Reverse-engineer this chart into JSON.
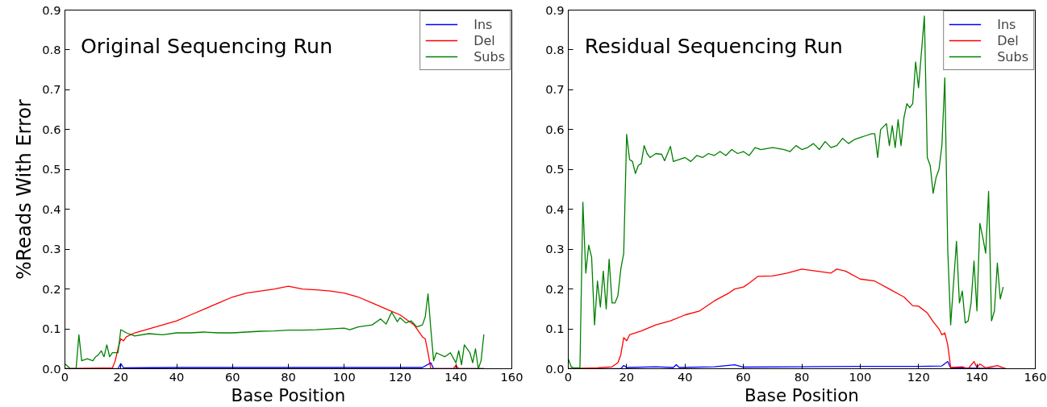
{
  "chart_data": [
    {
      "type": "line",
      "title": "Original Sequencing Run",
      "xlabel": "Base Position",
      "ylabel": "%Reads With Error",
      "xlim": [
        0,
        160
      ],
      "ylim": [
        0,
        0.9
      ],
      "xticks": [
        0,
        20,
        40,
        60,
        80,
        100,
        120,
        140,
        160
      ],
      "yticks": [
        {
          "value": 0,
          "label": "0.0"
        },
        0.1,
        0.2,
        0.3,
        0.4,
        0.5,
        0.6,
        0.7,
        0.8,
        0.9
      ],
      "grid": false,
      "legend": "top right",
      "marker": "none",
      "line_style": "solid",
      "series": [
        {
          "name": "Ins",
          "color": "#0000ff",
          "x": [
            0,
            19,
            20,
            21,
            40,
            80,
            100,
            128,
            131,
            132,
            150
          ],
          "values": [
            0,
            0,
            0.013,
            0.002,
            0.003,
            0.003,
            0.003,
            0.003,
            0.015,
            0,
            0
          ]
        },
        {
          "name": "Del",
          "color": "#ff0000",
          "x": [
            0,
            17,
            18,
            19,
            20,
            21,
            22,
            25,
            30,
            35,
            40,
            45,
            50,
            55,
            60,
            65,
            70,
            75,
            80,
            85,
            90,
            95,
            100,
            105,
            110,
            115,
            120,
            125,
            128,
            129,
            130,
            131,
            139,
            140,
            141,
            150
          ],
          "values": [
            0,
            0.002,
            0.02,
            0.05,
            0.075,
            0.07,
            0.08,
            0.09,
            0.1,
            0.11,
            0.12,
            0.135,
            0.15,
            0.165,
            0.18,
            0.19,
            0.195,
            0.2,
            0.207,
            0.2,
            0.198,
            0.195,
            0.19,
            0.18,
            0.165,
            0.15,
            0.135,
            0.11,
            0.08,
            0.075,
            0.04,
            0,
            0,
            0.008,
            0,
            0
          ]
        },
        {
          "name": "Subs",
          "color": "#008000",
          "x": [
            0,
            2,
            4,
            5,
            6,
            8,
            10,
            11,
            12,
            13,
            14,
            15,
            16,
            17,
            19,
            20,
            22,
            25,
            30,
            35,
            40,
            45,
            50,
            55,
            60,
            65,
            70,
            75,
            80,
            85,
            90,
            95,
            100,
            102,
            105,
            110,
            113,
            115,
            117,
            119,
            120,
            122,
            124,
            126,
            128,
            129,
            130,
            131,
            132,
            133,
            136,
            138,
            140,
            141,
            142,
            143,
            145,
            146,
            147,
            148,
            149,
            150
          ],
          "values": [
            0.012,
            0,
            0,
            0.085,
            0.02,
            0.025,
            0.02,
            0.03,
            0.035,
            0.045,
            0.03,
            0.06,
            0.03,
            0.04,
            0.04,
            0.098,
            0.09,
            0.082,
            0.088,
            0.085,
            0.09,
            0.09,
            0.092,
            0.09,
            0.09,
            0.092,
            0.094,
            0.095,
            0.097,
            0.097,
            0.098,
            0.1,
            0.102,
            0.098,
            0.105,
            0.11,
            0.125,
            0.112,
            0.142,
            0.118,
            0.128,
            0.115,
            0.12,
            0.105,
            0.11,
            0.13,
            0.188,
            0.1,
            0.02,
            0.04,
            0.03,
            0.04,
            0.015,
            0.045,
            0.01,
            0.06,
            0.04,
            0.015,
            0.05,
            0,
            0.02,
            0.086
          ]
        }
      ]
    },
    {
      "type": "line",
      "title": "Residual Sequencing Run",
      "xlabel": "Base Position",
      "xlim": [
        0,
        160
      ],
      "ylim": [
        0,
        0.9
      ],
      "xticks": [
        0,
        20,
        40,
        60,
        80,
        100,
        120,
        140,
        160
      ],
      "yticks": [
        {
          "value": 0,
          "label": "0.0"
        },
        0.1,
        0.2,
        0.3,
        0.4,
        0.5,
        0.6,
        0.7,
        0.8,
        0.9
      ],
      "grid": false,
      "legend": "top right",
      "marker": "none",
      "line_style": "solid",
      "series": [
        {
          "name": "Ins",
          "color": "#0000ff",
          "x": [
            0,
            18,
            19,
            20,
            30,
            36,
            37,
            38,
            50,
            57,
            60,
            80,
            100,
            120,
            128,
            130,
            131,
            150
          ],
          "values": [
            0,
            0,
            0.008,
            0.003,
            0.005,
            0.003,
            0.01,
            0.003,
            0.005,
            0.01,
            0.004,
            0.005,
            0.006,
            0.006,
            0.007,
            0.018,
            0.002,
            0
          ]
        },
        {
          "name": "Del",
          "color": "#ff0000",
          "x": [
            0,
            10,
            15,
            17,
            18,
            19,
            20,
            21,
            25,
            30,
            35,
            40,
            45,
            50,
            55,
            57,
            60,
            62,
            65,
            70,
            75,
            80,
            85,
            90,
            92,
            95,
            100,
            105,
            110,
            115,
            118,
            120,
            123,
            125,
            127,
            128,
            129,
            130,
            131,
            135,
            137,
            139,
            140,
            141,
            143,
            147,
            150
          ],
          "values": [
            0,
            0.002,
            0.005,
            0.015,
            0.035,
            0.078,
            0.07,
            0.085,
            0.095,
            0.11,
            0.12,
            0.135,
            0.145,
            0.17,
            0.19,
            0.2,
            0.205,
            0.215,
            0.232,
            0.233,
            0.24,
            0.25,
            0.245,
            0.24,
            0.25,
            0.245,
            0.225,
            0.22,
            0.2,
            0.18,
            0.158,
            0.157,
            0.14,
            0.118,
            0.1,
            0.085,
            0.09,
            0.06,
            0.003,
            0.005,
            0,
            0.018,
            0.003,
            0.012,
            0.002,
            0.008,
            0
          ]
        },
        {
          "name": "Subs",
          "color": "#008000",
          "x": [
            0,
            1,
            2,
            4,
            5,
            6,
            7,
            8,
            9,
            10,
            11,
            12,
            13,
            14,
            15,
            16,
            17,
            18,
            19,
            20,
            21,
            22,
            23,
            24,
            25,
            26,
            27,
            28,
            30,
            32,
            33,
            35,
            36,
            38,
            40,
            42,
            44,
            46,
            48,
            50,
            52,
            54,
            56,
            58,
            60,
            62,
            64,
            66,
            70,
            74,
            76,
            78,
            80,
            82,
            84,
            86,
            88,
            90,
            92,
            94,
            96,
            98,
            100,
            102,
            104,
            105,
            106,
            107,
            109,
            110,
            111,
            112,
            113,
            114,
            115,
            116,
            117,
            118,
            119,
            120,
            122,
            123,
            124,
            125,
            126,
            127,
            128,
            129,
            130,
            131,
            133,
            134,
            135,
            136,
            137,
            138,
            139,
            140,
            141,
            142,
            143,
            144,
            145,
            146,
            147,
            148,
            149
          ],
          "values": [
            0.025,
            0.005,
            0.002,
            0.002,
            0.418,
            0.24,
            0.31,
            0.28,
            0.11,
            0.22,
            0.155,
            0.245,
            0.15,
            0.275,
            0.165,
            0.165,
            0.183,
            0.25,
            0.29,
            0.588,
            0.525,
            0.52,
            0.49,
            0.51,
            0.515,
            0.56,
            0.54,
            0.53,
            0.54,
            0.538,
            0.522,
            0.558,
            0.52,
            0.525,
            0.53,
            0.52,
            0.535,
            0.53,
            0.54,
            0.535,
            0.545,
            0.535,
            0.55,
            0.54,
            0.545,
            0.535,
            0.555,
            0.55,
            0.555,
            0.55,
            0.545,
            0.56,
            0.55,
            0.555,
            0.565,
            0.55,
            0.57,
            0.555,
            0.56,
            0.578,
            0.565,
            0.575,
            0.58,
            0.585,
            0.59,
            0.59,
            0.53,
            0.6,
            0.615,
            0.56,
            0.61,
            0.555,
            0.625,
            0.56,
            0.63,
            0.665,
            0.655,
            0.665,
            0.77,
            0.705,
            0.885,
            0.53,
            0.51,
            0.44,
            0.48,
            0.5,
            0.56,
            0.73,
            0.3,
            0.11,
            0.32,
            0.165,
            0.195,
            0.115,
            0.12,
            0.165,
            0.27,
            0.145,
            0.365,
            0.33,
            0.29,
            0.445,
            0.12,
            0.145,
            0.265,
            0.175,
            0.205
          ]
        }
      ]
    }
  ]
}
